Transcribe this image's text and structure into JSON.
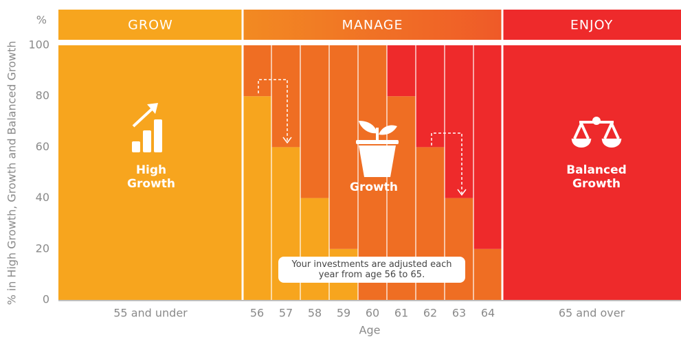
{
  "chart_data": {
    "type": "bar",
    "stacked": true,
    "y_unit": "%",
    "ylabel": "% in High Growth, Growth and Balanced Growth",
    "xlabel": "Age",
    "phases": [
      "GROW",
      "MANAGE",
      "ENJOY"
    ],
    "annotation": "Your investments are adjusted each year from age 56 to 65.",
    "categories": [
      "55 and under",
      "56",
      "57",
      "58",
      "59",
      "60",
      "61",
      "62",
      "63",
      "64",
      "65 and over"
    ],
    "series": [
      {
        "name": "High Growth",
        "color": "#f7a51e",
        "values": [
          100,
          80,
          60,
          40,
          20,
          0,
          0,
          0,
          0,
          0,
          0
        ]
      },
      {
        "name": "Growth",
        "color": "#ef6e23",
        "values": [
          0,
          20,
          40,
          60,
          80,
          100,
          80,
          60,
          40,
          20,
          0
        ]
      },
      {
        "name": "Balanced Growth",
        "color": "#ee2a2b",
        "values": [
          0,
          0,
          0,
          0,
          0,
          0,
          20,
          40,
          60,
          80,
          100
        ]
      }
    ],
    "ylim": [
      0,
      100
    ],
    "yticks": [
      0,
      20,
      40,
      60,
      80,
      100
    ]
  }
}
